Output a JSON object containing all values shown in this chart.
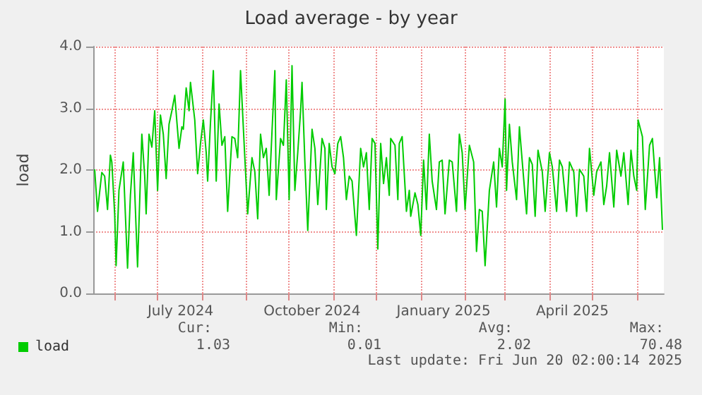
{
  "chart_data": {
    "type": "line",
    "title": "Load average - by year",
    "ylabel": "load",
    "x": [
      "2024-05-18",
      "2024-05-20",
      "2024-05-23",
      "2024-05-25",
      "2024-05-27",
      "2024-05-29",
      "2024-05-30",
      "2024-06-01",
      "2024-06-02",
      "2024-06-04",
      "2024-06-07",
      "2024-06-10",
      "2024-06-12",
      "2024-06-14",
      "2024-06-17",
      "2024-06-20",
      "2024-06-22",
      "2024-06-23",
      "2024-06-25",
      "2024-06-27",
      "2024-06-29",
      "2024-07-01",
      "2024-07-03",
      "2024-07-05",
      "2024-07-07",
      "2024-07-09",
      "2024-07-11",
      "2024-07-13",
      "2024-07-16",
      "2024-07-18",
      "2024-07-19",
      "2024-07-21",
      "2024-07-23",
      "2024-07-24",
      "2024-07-27",
      "2024-07-29",
      "2024-07-31",
      "2024-08-02",
      "2024-08-04",
      "2024-08-05",
      "2024-08-07",
      "2024-08-09",
      "2024-08-11",
      "2024-08-13",
      "2024-08-15",
      "2024-08-17",
      "2024-08-19",
      "2024-08-22",
      "2024-08-24",
      "2024-08-26",
      "2024-08-28",
      "2024-08-31",
      "2024-09-02",
      "2024-09-05",
      "2024-09-07",
      "2024-09-09",
      "2024-09-11",
      "2024-09-13",
      "2024-09-15",
      "2024-09-17",
      "2024-09-19",
      "2024-09-21",
      "2024-09-22",
      "2024-09-25",
      "2024-09-27",
      "2024-09-29",
      "2024-10-01",
      "2024-10-03",
      "2024-10-05",
      "2024-10-07",
      "2024-10-09",
      "2024-10-10",
      "2024-10-12",
      "2024-10-14",
      "2024-10-17",
      "2024-10-19",
      "2024-10-21",
      "2024-10-24",
      "2024-10-26",
      "2024-10-27",
      "2024-10-29",
      "2024-10-31",
      "2024-11-02",
      "2024-11-04",
      "2024-11-06",
      "2024-11-08",
      "2024-11-10",
      "2024-11-12",
      "2024-11-14",
      "2024-11-17",
      "2024-11-20",
      "2024-11-22",
      "2024-11-24",
      "2024-11-26",
      "2024-11-28",
      "2024-11-30",
      "2024-12-02",
      "2024-12-04",
      "2024-12-06",
      "2024-12-08",
      "2024-12-10",
      "2024-12-11",
      "2024-12-14",
      "2024-12-16",
      "2024-12-17",
      "2024-12-19",
      "2024-12-22",
      "2024-12-24",
      "2024-12-25",
      "2024-12-28",
      "2024-12-30",
      "2025-01-01",
      "2025-01-03",
      "2025-01-05",
      "2025-01-07",
      "2025-01-09",
      "2025-01-12",
      "2025-01-14",
      "2025-01-16",
      "2025-01-18",
      "2025-01-21",
      "2025-01-23",
      "2025-01-26",
      "2025-01-28",
      "2025-01-30",
      "2025-02-01",
      "2025-02-04",
      "2025-02-07",
      "2025-02-09",
      "2025-02-11",
      "2025-02-13",
      "2025-02-15",
      "2025-02-18",
      "2025-02-21",
      "2025-02-23",
      "2025-02-25",
      "2025-02-27",
      "2025-03-01",
      "2025-03-02",
      "2025-03-04",
      "2025-03-06",
      "2025-03-09",
      "2025-03-11",
      "2025-03-13",
      "2025-03-16",
      "2025-03-18",
      "2025-03-20",
      "2025-03-22",
      "2025-03-24",
      "2025-03-27",
      "2025-03-29",
      "2025-04-01",
      "2025-04-03",
      "2025-04-06",
      "2025-04-08",
      "2025-04-10",
      "2025-04-13",
      "2025-04-15",
      "2025-04-18",
      "2025-04-20",
      "2025-04-22",
      "2025-04-25",
      "2025-04-27",
      "2025-04-29",
      "2025-05-02",
      "2025-05-04",
      "2025-05-07",
      "2025-05-09",
      "2025-05-11",
      "2025-05-13",
      "2025-05-16",
      "2025-05-18",
      "2025-05-21",
      "2025-05-23",
      "2025-05-26",
      "2025-05-28",
      "2025-05-30",
      "2025-06-01",
      "2025-06-02",
      "2025-06-05",
      "2025-06-07",
      "2025-06-10",
      "2025-06-12",
      "2025-06-15",
      "2025-06-17",
      "2025-06-19"
    ],
    "series": [
      {
        "name": "load",
        "color": "#00cc00",
        "values": [
          2.01,
          1.33,
          1.96,
          1.9,
          1.36,
          2.24,
          2.13,
          1.29,
          0.45,
          1.67,
          2.13,
          0.41,
          1.59,
          2.28,
          0.43,
          2.58,
          1.9,
          1.29,
          2.58,
          2.37,
          2.96,
          1.67,
          2.89,
          2.58,
          1.86,
          2.74,
          2.96,
          3.21,
          2.35,
          2.7,
          2.66,
          3.33,
          2.96,
          3.42,
          2.81,
          1.94,
          2.43,
          2.81,
          2.28,
          1.82,
          2.77,
          3.61,
          1.82,
          3.07,
          2.4,
          2.54,
          1.33,
          2.54,
          2.51,
          2.2,
          3.61,
          2.2,
          1.29,
          2.2,
          1.97,
          1.21,
          2.58,
          2.2,
          2.35,
          1.59,
          2.62,
          3.61,
          1.52,
          2.51,
          2.4,
          3.46,
          1.52,
          3.69,
          1.67,
          2.28,
          2.96,
          3.42,
          2.13,
          1.02,
          2.66,
          2.35,
          1.44,
          2.51,
          2.35,
          1.36,
          2.43,
          2.05,
          1.94,
          2.43,
          2.54,
          2.2,
          1.52,
          1.9,
          1.82,
          0.94,
          2.35,
          2.05,
          2.28,
          1.36,
          2.51,
          2.43,
          0.72,
          2.43,
          1.78,
          2.2,
          1.59,
          2.51,
          2.4,
          1.52,
          2.43,
          2.54,
          1.33,
          1.67,
          1.25,
          1.63,
          1.44,
          0.94,
          2.16,
          1.36,
          2.58,
          1.82,
          1.36,
          2.13,
          2.16,
          1.29,
          2.16,
          2.13,
          1.33,
          2.58,
          2.28,
          1.36,
          2.4,
          2.13,
          0.68,
          1.36,
          1.33,
          0.45,
          1.67,
          2.13,
          1.4,
          2.35,
          2.05,
          3.15,
          1.67,
          2.74,
          2.13,
          1.52,
          2.7,
          2.13,
          1.29,
          2.2,
          2.09,
          1.25,
          2.32,
          1.97,
          1.33,
          2.28,
          2.05,
          1.33,
          2.16,
          2.05,
          1.33,
          2.13,
          1.97,
          1.25,
          2.01,
          1.9,
          1.33,
          2.35,
          1.59,
          1.97,
          2.13,
          1.44,
          1.74,
          2.28,
          1.4,
          2.32,
          1.9,
          2.28,
          1.44,
          2.32,
          1.9,
          1.67,
          2.81,
          2.54,
          1.36,
          2.4,
          2.51,
          1.55,
          2.2,
          1.03
        ]
      }
    ],
    "xlim": [
      "2024-05-17",
      "2025-06-20"
    ],
    "xticks": [
      {
        "value": "2024-06-01",
        "label": null
      },
      {
        "value": "2024-07-01",
        "label": null
      },
      {
        "value": "2024-07-17",
        "label": "July 2024"
      },
      {
        "value": "2024-08-01",
        "label": null
      },
      {
        "value": "2024-09-01",
        "label": null
      },
      {
        "value": "2024-10-01",
        "label": null
      },
      {
        "value": "2024-10-17",
        "label": "October 2024"
      },
      {
        "value": "2024-11-01",
        "label": null
      },
      {
        "value": "2024-12-01",
        "label": null
      },
      {
        "value": "2025-01-01",
        "label": null
      },
      {
        "value": "2025-01-17",
        "label": "January 2025"
      },
      {
        "value": "2025-02-01",
        "label": null
      },
      {
        "value": "2025-03-01",
        "label": null
      },
      {
        "value": "2025-04-01",
        "label": null
      },
      {
        "value": "2025-04-17",
        "label": "April 2025"
      },
      {
        "value": "2025-05-01",
        "label": null
      },
      {
        "value": "2025-06-01",
        "label": null
      }
    ],
    "ylim": [
      0,
      4.0
    ],
    "yticks": [
      {
        "value": 0,
        "label": "0.0"
      },
      {
        "value": 1,
        "label": "1.0"
      },
      {
        "value": 2,
        "label": "2.0"
      },
      {
        "value": 3,
        "label": "3.0"
      },
      {
        "value": 4,
        "label": "4.0"
      }
    ],
    "grid": true,
    "legend": "bottom left",
    "marker": "none",
    "line_style": "solid",
    "annotations": [
      "Cur:",
      "Min:",
      "Avg:",
      "Max:",
      "1.03",
      "0.01",
      "2.02",
      "70.48",
      "Last update: Fri Jun 20 02:00:14 2025"
    ]
  }
}
